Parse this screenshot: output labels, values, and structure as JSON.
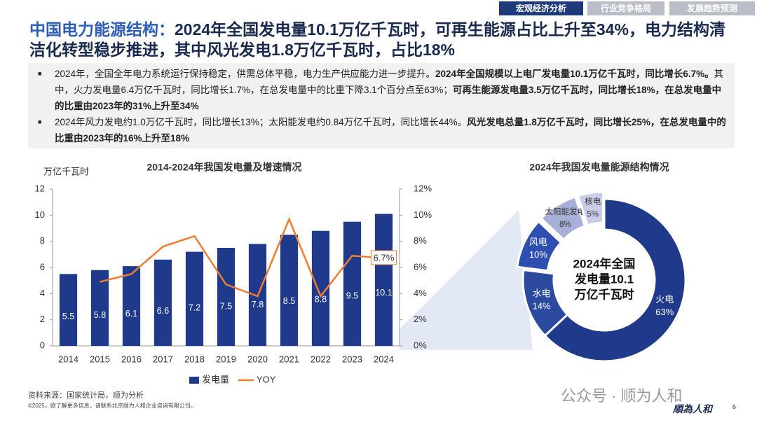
{
  "header": {
    "tabs": [
      "宏观经济分析",
      "行业竞争格局",
      "发展趋势预测"
    ]
  },
  "title": {
    "highlight": "中国电力能源结构：",
    "text": "2024年全国发电量10.1万亿千瓦时，可再生能源占比上升至34%，电力结构清洁化转型稳步推进，其中风光发电1.8万亿千瓦时，占比18%"
  },
  "bullets": [
    [
      {
        "text": "2024年，全国全年电力系统运行保持稳定，供需总体平稳，电力生产供应能力进一步提升。",
        "bold": false
      },
      {
        "text": "2024年全国规模以上电厂发电量10.1万亿千瓦时，同比增长6.7%。",
        "bold": true
      },
      {
        "text": "其中，火力发电量6.4万亿千瓦时，同比增长1.7%，在总发电量中的比重下降3.1个百分点至63%；",
        "bold": false
      },
      {
        "text": "可再生能源发电量3.5万亿千瓦时，同比增长18%，在总发电量中的比重由2023年的31%上升至34%",
        "bold": true
      }
    ],
    [
      {
        "text": "2024年风力发电约1.0万亿千瓦时，同比增长13%；太阳能发电约0.84万亿千瓦时，同比增长44%。",
        "bold": false
      },
      {
        "text": "风光发电总量1.8万亿千瓦时，同比增长25%，在总发电量中的比重由2023年的16%上升至18%",
        "bold": true
      }
    ]
  ],
  "chart_data": [
    {
      "type": "combo",
      "title": "2014-2024年我国发电量及增速情况",
      "y_label": "万亿千瓦时",
      "categories": [
        "2014",
        "2015",
        "2016",
        "2017",
        "2018",
        "2019",
        "2020",
        "2021",
        "2022",
        "2023",
        "2024"
      ],
      "series": [
        {
          "name": "发电量",
          "type": "bar",
          "color": "#1f3a8a",
          "values": [
            5.5,
            5.8,
            6.1,
            6.6,
            7.2,
            7.5,
            7.8,
            8.5,
            8.8,
            9.5,
            10.1
          ]
        },
        {
          "name": "YOY",
          "type": "line",
          "axis": "y2",
          "color": "#ed7d31",
          "values": [
            null,
            4.9,
            5.5,
            7.6,
            8.4,
            4.7,
            3.8,
            9.7,
            3.8,
            6.9,
            6.7
          ],
          "value_labels": [
            null,
            null,
            null,
            null,
            null,
            null,
            null,
            null,
            null,
            null,
            "6.7%"
          ]
        }
      ],
      "ylim": [
        0,
        12
      ],
      "yticks": [
        0,
        2,
        4,
        6,
        8,
        10,
        12
      ],
      "y2lim": [
        0,
        12
      ],
      "y2ticks": [
        {
          "value": 0,
          "label": "0%"
        },
        {
          "value": 2,
          "label": "2%"
        },
        {
          "value": 4,
          "label": "4%"
        },
        {
          "value": 6,
          "label": "6%"
        },
        {
          "value": 8,
          "label": "8%"
        },
        {
          "value": 10,
          "label": "10%"
        },
        {
          "value": 12,
          "label": "12%"
        }
      ]
    },
    {
      "type": "donut",
      "title": "2024年我国发电量能源结构情况",
      "center_label": [
        "2024年全国",
        "发电量10.1",
        "万亿千瓦时"
      ],
      "categories": [
        "火电",
        "水电",
        "风电",
        "太阳能发电",
        "核电"
      ],
      "values": [
        63,
        14,
        10,
        8,
        5
      ],
      "value_labels": [
        "63%",
        "14%",
        "10%",
        "8%",
        "5%"
      ],
      "colors": [
        "#1f3a8a",
        "#2a4a9e",
        "#2f4fb0",
        "#a9b0d8",
        "#c8cce8"
      ]
    }
  ],
  "footer": {
    "source": "资料来源：国家统计局，顺为分析",
    "copyright": "©2025。欲了解更多信息，请联系北京顺为人和企业咨询有限公司。",
    "watermark": "公众号 · 顺为人和",
    "logo": "順為人和",
    "page": "6"
  }
}
